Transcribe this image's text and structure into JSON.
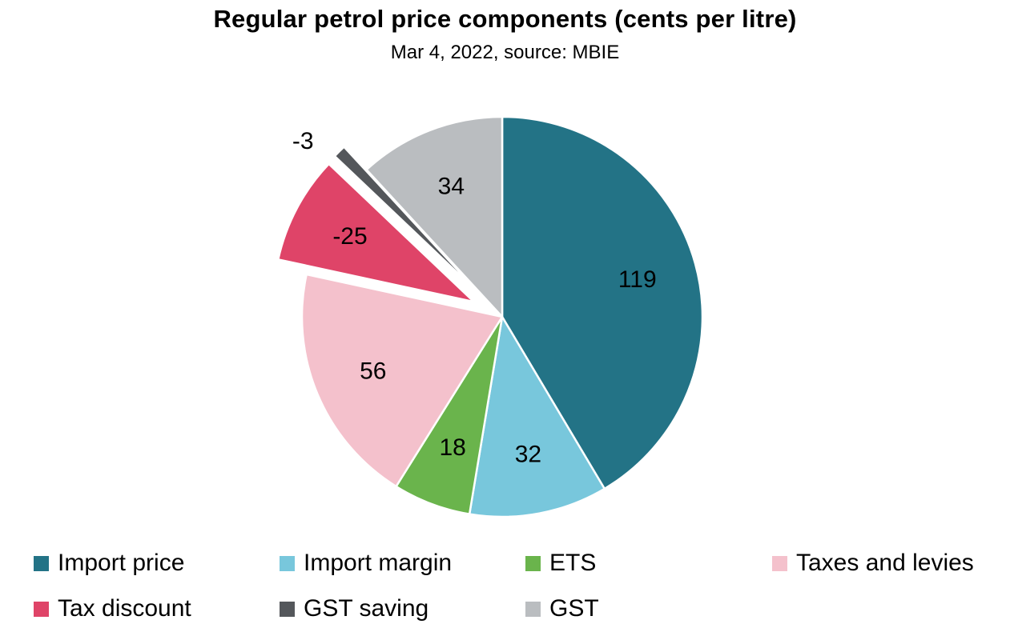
{
  "chart_data": {
    "type": "pie",
    "title": "Regular petrol price components (cents per litre)",
    "subtitle": "Mar 4, 2022, source: MBIE",
    "legend_position": "bottom",
    "slices": [
      {
        "name": "Import price",
        "value": 119,
        "label": "119",
        "color": "#237386",
        "exploded": false
      },
      {
        "name": "Import margin",
        "value": 32,
        "label": "32",
        "color": "#78c7dc",
        "exploded": false
      },
      {
        "name": "ETS",
        "value": 18,
        "label": "18",
        "color": "#6ab44c",
        "exploded": false
      },
      {
        "name": "Taxes and levies",
        "value": 56,
        "label": "56",
        "color": "#f4c1cc",
        "exploded": false
      },
      {
        "name": "Tax discount",
        "value": -25,
        "label": "-25",
        "color": "#df4468",
        "exploded": true
      },
      {
        "name": "GST saving",
        "value": -3,
        "label": "-3",
        "color": "#54575b",
        "exploded": true
      },
      {
        "name": "GST",
        "value": 34,
        "label": "34",
        "color": "#babdc0",
        "exploded": false
      }
    ]
  }
}
